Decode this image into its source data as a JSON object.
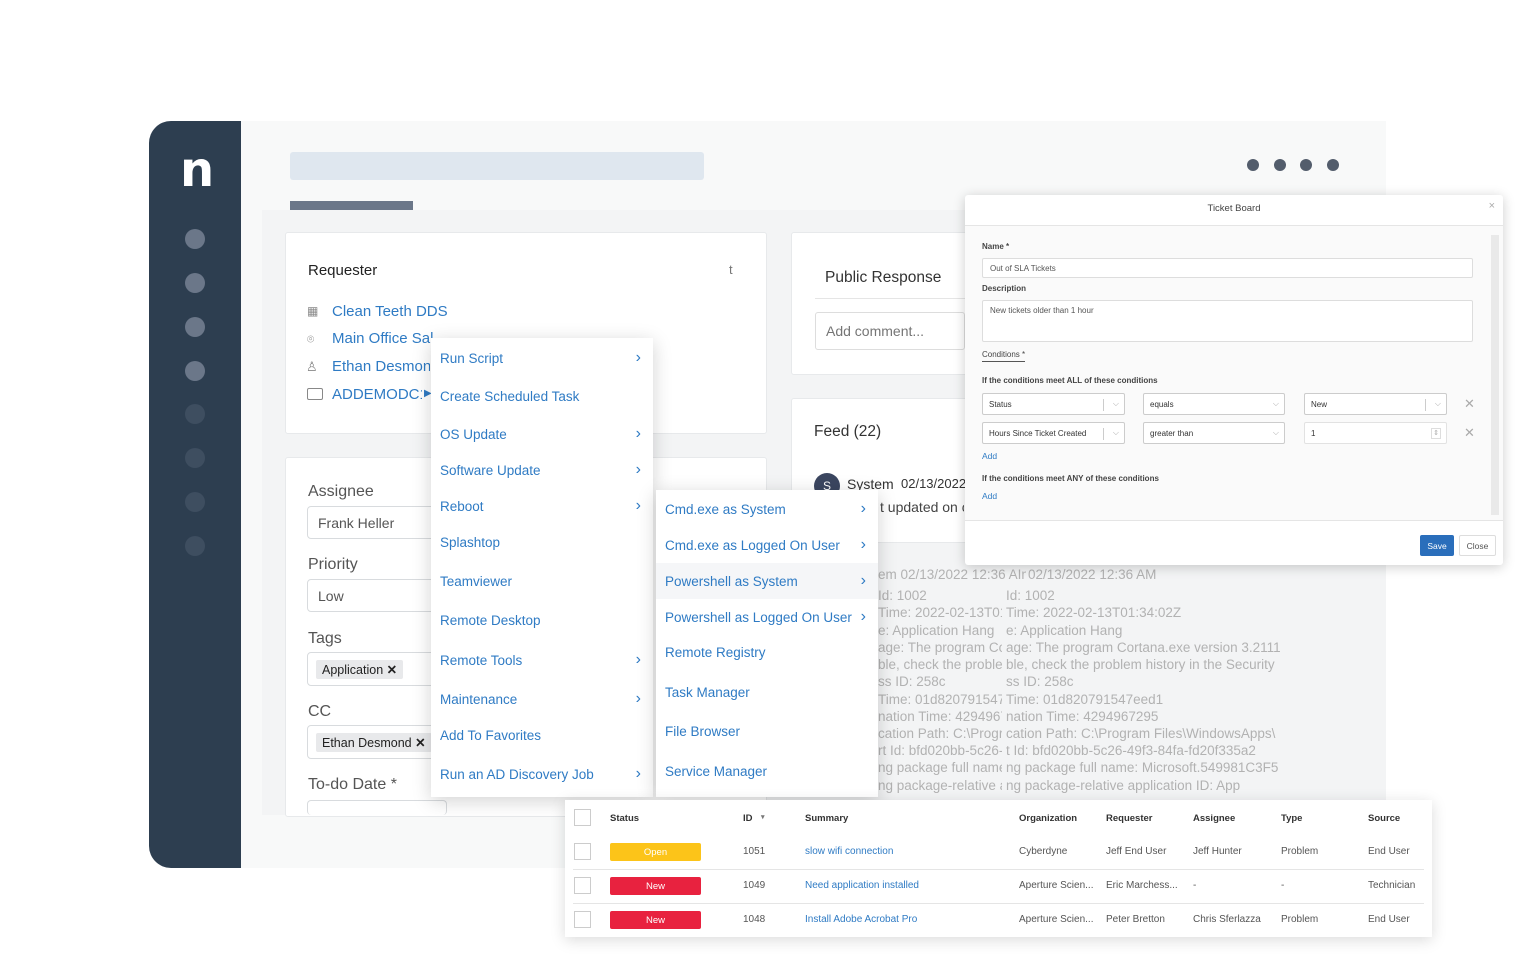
{
  "brand": {
    "logo": "n",
    "sidebar_color": "#2d3e50"
  },
  "header": {
    "dots": 4
  },
  "requester": {
    "title": "Requester",
    "trail": "t",
    "organization": "Clean Teeth DDS",
    "location": "Main Office Sal--",
    "contact": "Ethan Desmond",
    "device": "ADDEMODC1",
    "icons": [
      "building-icon",
      "location-pin-icon",
      "user-icon",
      "monitor-icon"
    ]
  },
  "details": {
    "assignee_label": "Assignee",
    "assignee_value": "Frank Heller",
    "priority_label": "Priority",
    "priority_value": "Low",
    "tags_label": "Tags",
    "tags": [
      "Application"
    ],
    "cc_label": "CC",
    "cc": [
      "Ethan Desmond"
    ],
    "todo_label": "To-do Date *"
  },
  "public_response": {
    "title": "Public Response",
    "placeholder": "Add comment..."
  },
  "feed": {
    "title": "Feed (22)",
    "avatar": "S",
    "author": "System",
    "date": "02/13/2022",
    "snippet": "t updated on co",
    "lines": [
      {
        "a": "em  02/13/2022 12:36 AIm",
        "b": "02/13/2022 12:36 AM"
      },
      {
        "a": "Id: 1002",
        "b": "Id: 1002"
      },
      {
        "a": "Time: 2022-02-13T01",
        "b": "Time: 2022-02-13T01:34:02Z"
      },
      {
        "a": "e: Application Hang",
        "b": "e: Application Hang"
      },
      {
        "a": "age: The program Cor",
        "b": "age: The program Cortana.exe version 3.2111"
      },
      {
        "a": "ble, check the problen",
        "b": "ble, check the problem history in the Security"
      },
      {
        "a": "ss ID: 258c",
        "b": "ss ID: 258c"
      },
      {
        "a": "Time: 01d820791547e",
        "b": "Time: 01d820791547eed1"
      },
      {
        "a": "nation Time: 4294967",
        "b": "nation Time: 4294967295"
      },
      {
        "a": "cation Path: C:\\Progra",
        "b": "cation Path: C:\\Program Files\\WindowsApps\\"
      },
      {
        "a": "rt Id: bfd020bb-5c26-4",
        "b": "t Id: bfd020bb-5c26-49f3-84fa-fd20f335a2"
      },
      {
        "a": "ng package full name:",
        "b": "ng package full name: Microsoft.549981C3F5"
      },
      {
        "a": "ng package-relative a",
        "b": "ng package-relative application ID: App"
      }
    ]
  },
  "context_menu": {
    "items": [
      {
        "label": "Run Script",
        "submenu": true
      },
      {
        "label": "Create Scheduled Task",
        "submenu": false
      },
      {
        "label": "OS Update",
        "submenu": true
      },
      {
        "label": "Software Update",
        "submenu": true
      },
      {
        "label": "Reboot",
        "submenu": true
      },
      {
        "label": "Splashtop",
        "submenu": false
      },
      {
        "label": "Teamviewer",
        "submenu": false
      },
      {
        "label": "Remote Desktop",
        "submenu": false
      },
      {
        "label": "Remote Tools",
        "submenu": true
      },
      {
        "label": "Maintenance",
        "submenu": true
      },
      {
        "label": "Add To Favorites",
        "submenu": false
      },
      {
        "label": "Run an AD Discovery Job",
        "submenu": true
      }
    ]
  },
  "sub_menu": {
    "items": [
      {
        "label": "Cmd.exe as System",
        "submenu": true
      },
      {
        "label": "Cmd.exe as Logged On User",
        "submenu": true
      },
      {
        "label": "Powershell as System",
        "submenu": true,
        "hovered": true
      },
      {
        "label": "Powershell as Logged On User",
        "submenu": true
      },
      {
        "label": "Remote Registry",
        "submenu": false
      },
      {
        "label": "Task Manager",
        "submenu": false
      },
      {
        "label": "File Browser",
        "submenu": false
      },
      {
        "label": "Service Manager",
        "submenu": false
      }
    ]
  },
  "modal": {
    "title": "Ticket Board",
    "close_icon": "×",
    "name_label": "Name *",
    "name_value": "Out of SLA Tickets",
    "description_label": "Description",
    "description_value": "New tickets older than 1 hour",
    "conditions_label": "Conditions *",
    "all_label": "If the conditions meet ALL of these conditions",
    "conditions": [
      {
        "field": "Status",
        "operator": "equals",
        "value": "New"
      },
      {
        "field": "Hours Since Ticket Created",
        "operator": "greater than",
        "value": "1"
      }
    ],
    "add_label": "Add",
    "any_label": "If the conditions meet ANY of these conditions",
    "add_any_label": "Add",
    "save_label": "Save",
    "close_label": "Close",
    "save_color": "#2a6ebb"
  },
  "tickets": {
    "headers": [
      "Status",
      "ID",
      "Summary",
      "Organization",
      "Requester",
      "Assignee",
      "Type",
      "Source"
    ],
    "sort_indicator": "▾",
    "rows": [
      {
        "status": "Open",
        "status_color": "#fcc419",
        "id": "1051",
        "summary": "slow wifi connection",
        "organization": "Cyberdyne",
        "requester": "Jeff End User",
        "assignee": "Jeff Hunter",
        "type": "Problem",
        "source": "End User"
      },
      {
        "status": "New",
        "status_color": "#e8223f",
        "id": "1049",
        "summary": "Need application installed",
        "organization": "Aperture Scien...",
        "requester": "Eric Marchess...",
        "assignee": "-",
        "type": "-",
        "source": "Technician"
      },
      {
        "status": "New",
        "status_color": "#e8223f",
        "id": "1048",
        "summary": "Install Adobe Acrobat Pro",
        "organization": "Aperture Scien...",
        "requester": "Peter Bretton",
        "assignee": "Chris Sferlazza",
        "type": "Problem",
        "source": "End User"
      }
    ]
  }
}
